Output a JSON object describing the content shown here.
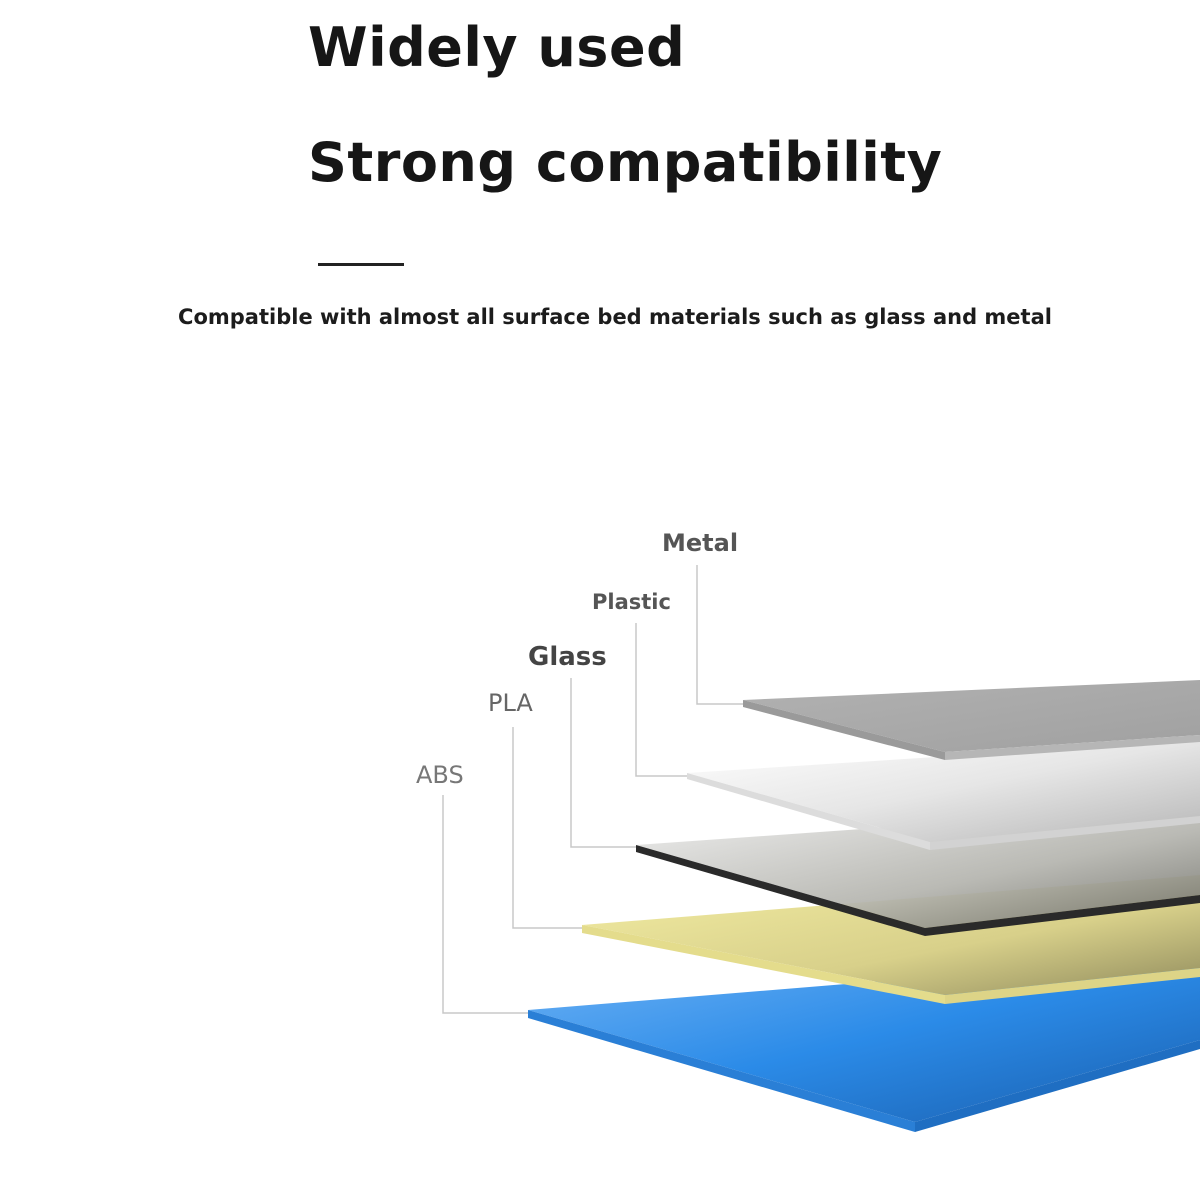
{
  "heading": {
    "line1": "Widely used",
    "line2": "Strong compatibility"
  },
  "subtitle": "Compatible with almost all surface bed materials such as glass and metal",
  "layers": [
    {
      "label": "Metal",
      "color": "#a9a9a9"
    },
    {
      "label": "Plastic",
      "color": "#e8e8e8"
    },
    {
      "label": "Glass",
      "color": "#2a2a2a"
    },
    {
      "label": "PLA",
      "color": "#e9e296"
    },
    {
      "label": "ABS",
      "color": "#2f86e0"
    }
  ]
}
